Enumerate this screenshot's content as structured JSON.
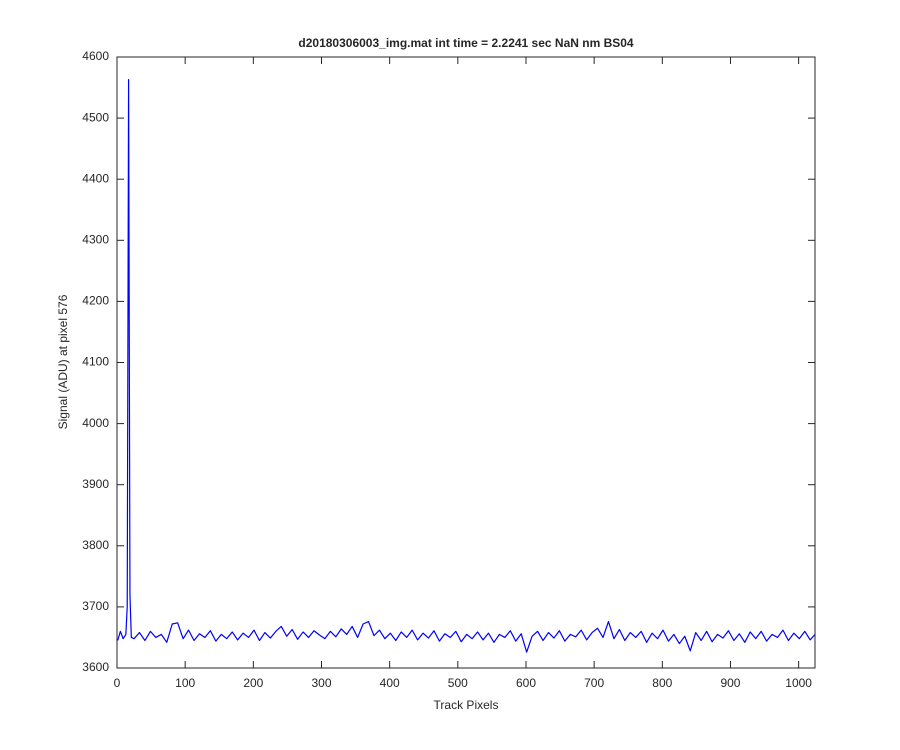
{
  "chart_data": {
    "type": "line",
    "title": "d20180306003_img.mat int time = 2.2241 sec  NaN nm BS04",
    "x_label": "Track Pixels",
    "y_label": "Signal (ADU) at pixel 576",
    "color": "#0000ff",
    "grid": false,
    "xlim": [
      0,
      1024
    ],
    "ylim": [
      3600,
      4600
    ],
    "xticks": [
      0,
      100,
      200,
      300,
      400,
      500,
      600,
      700,
      800,
      900,
      1000
    ],
    "yticks": [
      3600,
      3700,
      3800,
      3900,
      4000,
      4100,
      4200,
      4300,
      4400,
      4500,
      4600
    ],
    "x": [
      1,
      5,
      9,
      13,
      15,
      17,
      19,
      21,
      25,
      33,
      41,
      49,
      57,
      65,
      73,
      81,
      89,
      97,
      105,
      113,
      121,
      129,
      137,
      145,
      153,
      161,
      169,
      177,
      185,
      193,
      201,
      209,
      217,
      225,
      233,
      241,
      249,
      257,
      265,
      273,
      281,
      289,
      297,
      305,
      313,
      321,
      329,
      337,
      345,
      353,
      361,
      369,
      377,
      385,
      393,
      401,
      409,
      417,
      425,
      433,
      441,
      449,
      457,
      465,
      473,
      481,
      489,
      497,
      505,
      513,
      521,
      529,
      537,
      545,
      553,
      561,
      569,
      577,
      585,
      593,
      601,
      609,
      617,
      625,
      633,
      641,
      649,
      657,
      665,
      673,
      681,
      689,
      697,
      705,
      713,
      721,
      729,
      737,
      745,
      753,
      761,
      769,
      777,
      785,
      793,
      801,
      809,
      817,
      825,
      833,
      841,
      849,
      857,
      865,
      873,
      881,
      889,
      897,
      905,
      913,
      921,
      929,
      937,
      945,
      953,
      961,
      969,
      977,
      985,
      993,
      1001,
      1009,
      1017,
      1024
    ],
    "values": [
      3645,
      3660,
      3648,
      3655,
      3700,
      4563,
      3720,
      3650,
      3648,
      3658,
      3645,
      3660,
      3650,
      3655,
      3642,
      3672,
      3674,
      3648,
      3662,
      3645,
      3656,
      3650,
      3661,
      3644,
      3655,
      3648,
      3659,
      3646,
      3657,
      3650,
      3662,
      3645,
      3658,
      3649,
      3660,
      3668,
      3652,
      3663,
      3647,
      3659,
      3650,
      3661,
      3654,
      3648,
      3660,
      3651,
      3664,
      3655,
      3668,
      3650,
      3672,
      3676,
      3653,
      3662,
      3648,
      3657,
      3645,
      3659,
      3650,
      3662,
      3646,
      3657,
      3649,
      3661,
      3644,
      3656,
      3650,
      3660,
      3643,
      3655,
      3648,
      3659,
      3646,
      3657,
      3642,
      3655,
      3650,
      3661,
      3644,
      3656,
      3626,
      3652,
      3660,
      3645,
      3658,
      3649,
      3661,
      3644,
      3655,
      3651,
      3662,
      3646,
      3658,
      3665,
      3650,
      3676,
      3648,
      3663,
      3645,
      3658,
      3650,
      3660,
      3642,
      3657,
      3648,
      3662,
      3644,
      3655,
      3640,
      3652,
      3628,
      3658,
      3645,
      3660,
      3643,
      3655,
      3649,
      3661,
      3645,
      3656,
      3642,
      3659,
      3648,
      3660,
      3644,
      3655,
      3650,
      3662,
      3645,
      3657,
      3648,
      3660,
      3646,
      3655
    ]
  }
}
